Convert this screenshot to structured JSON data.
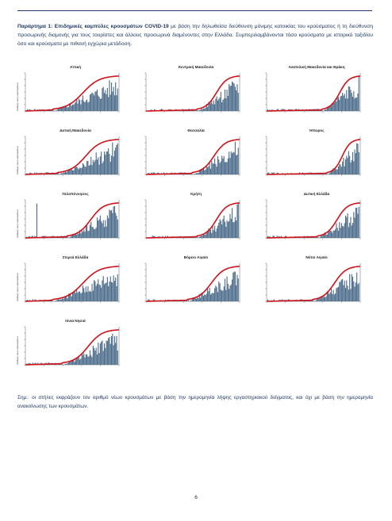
{
  "caption": {
    "label": "Παράρτημα 1:",
    "bold_text": "Επιδημικές καμπύλες κρουσμάτων COVID-19",
    "text": " με βάση την δηλωθείσα διεύθυνση μόνιμης κατοικίας του κρούσματος ή τη διεύθυνση προσωρινής διαμονής για τους τουρίστες και άλλους προσωρινά διαμένοντες στην Ελλάδα. Συμπεριλαμβάνονται τόσο κρούσματα με ιστορικό ταξιδίου όσο και κρούσματα με πιθανή εγχώρια μετάδοση."
  },
  "panels": [
    {
      "title": "Αττική",
      "ylabel": "Αριθμός νέων κρουσμάτων"
    },
    {
      "title": "Κεντρική Μακεδονία",
      "ylabel": ""
    },
    {
      "title": "Ανατολική Μακεδονία και Θράκη",
      "ylabel": ""
    },
    {
      "title": "Δυτική Μακεδονία",
      "ylabel": "Αριθμός νέων κρουσμάτων"
    },
    {
      "title": "Θεσσαλία",
      "ylabel": ""
    },
    {
      "title": "Ήπειρος",
      "ylabel": ""
    },
    {
      "title": "Πελοπόννησος",
      "ylabel": "Αριθμός νέων κρουσμάτων"
    },
    {
      "title": "Κρήτη",
      "ylabel": ""
    },
    {
      "title": "Δυτική Ελλάδα",
      "ylabel": ""
    },
    {
      "title": "Στερεά Ελλάδα",
      "ylabel": "Αριθμός νέων κρουσμάτων"
    },
    {
      "title": "Βόρειο Αιγαίο",
      "ylabel": ""
    },
    {
      "title": "Νότιο Αιγαίο",
      "ylabel": ""
    },
    {
      "title": "Ιόνια Νησιά",
      "ylabel": "Αριθμός νέων κρουσμάτων"
    }
  ],
  "colors": {
    "bars": "#4a6a8a",
    "curve": "#d0121b",
    "text": "#1f3864"
  },
  "note": "Σημ.: οι στήλες εκφράζουν τον αριθμό νέων κρουσμάτων με βάση την ημερομηνία λήψης εργαστηριακού δείγματος, και όχι με βάση την ημερομηνία ανακοίνωσης των κρουσμάτων.",
  "page_number": "6"
}
